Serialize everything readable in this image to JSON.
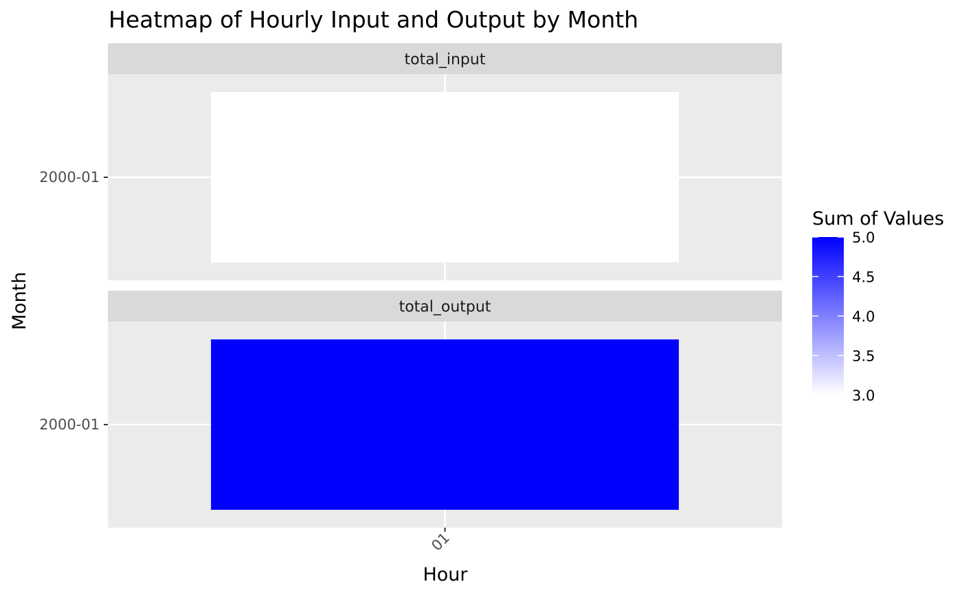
{
  "chart_data": {
    "type": "heatmap",
    "title": "Heatmap of Hourly Input and Output by Month",
    "xlabel": "Hour",
    "ylabel": "Month",
    "x_categories": [
      "01"
    ],
    "y_categories": [
      "2000-01"
    ],
    "facets": [
      {
        "label": "total_input",
        "cells": [
          {
            "x": "01",
            "y": "2000-01",
            "value": 3
          }
        ]
      },
      {
        "label": "total_output",
        "cells": [
          {
            "x": "01",
            "y": "2000-01",
            "value": 5
          }
        ]
      }
    ],
    "legend": {
      "title": "Sum of Values",
      "placement": "right",
      "min": 3.0,
      "max": 5.0,
      "breaks": [
        "3.0",
        "3.5",
        "4.0",
        "4.5",
        "5.0"
      ],
      "low_color": "#ffffff",
      "high_color": "#0000ff"
    },
    "panel_background": "#ebebeb",
    "strip_background": "#d9d9d9",
    "grid_color": "#ffffff",
    "grid": true
  }
}
